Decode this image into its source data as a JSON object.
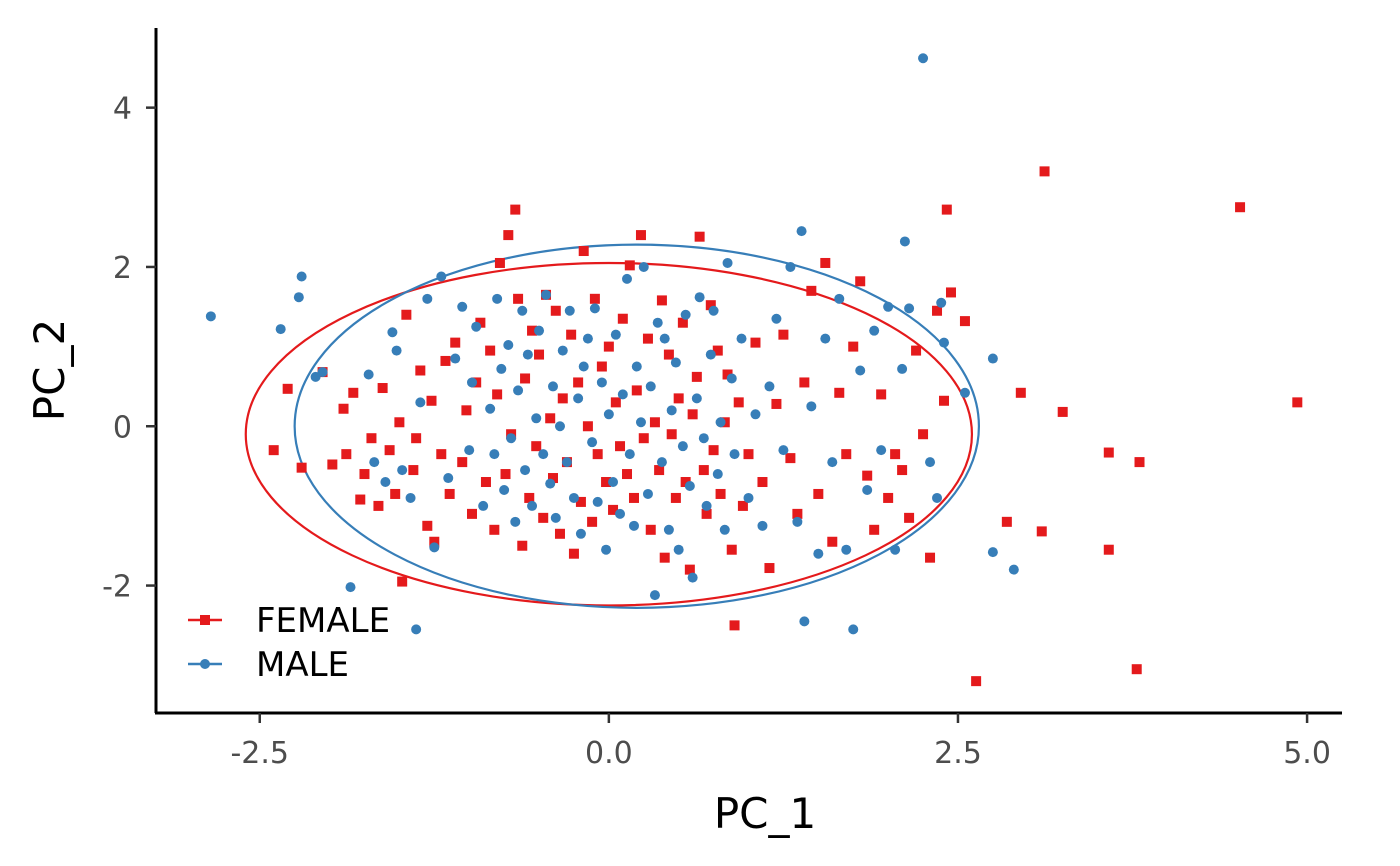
{
  "chart_data": {
    "type": "scatter",
    "title": "",
    "xlabel": "PC_1",
    "ylabel": "PC_2",
    "xlim": [
      -3.25,
      5.25
    ],
    "ylim": [
      -3.6,
      5.0
    ],
    "xticks": [
      -2.5,
      0.0,
      2.5,
      5.0
    ],
    "xtick_labels": [
      "-2.5",
      "0.0",
      "2.5",
      "5.0"
    ],
    "yticks": [
      -2,
      0,
      2,
      4
    ],
    "ytick_labels": [
      "-2",
      "0",
      "2",
      "4"
    ],
    "grid": false,
    "legend_position": "bottom-left",
    "series": [
      {
        "name": "FEMALE",
        "color": "#e41a1c",
        "marker": "square",
        "ellipse": {
          "cx": 0.0,
          "cy": -0.1,
          "rx": 2.6,
          "ry": 2.15
        },
        "points": [
          [
            -2.4,
            -0.3
          ],
          [
            -2.3,
            0.47
          ],
          [
            -2.2,
            -0.52
          ],
          [
            -2.05,
            0.68
          ],
          [
            -1.98,
            -0.48
          ],
          [
            -1.9,
            0.22
          ],
          [
            -1.88,
            -0.35
          ],
          [
            -1.83,
            0.42
          ],
          [
            -1.78,
            -0.92
          ],
          [
            -1.75,
            -0.6
          ],
          [
            -1.7,
            -0.15
          ],
          [
            -1.65,
            -1.0
          ],
          [
            -1.62,
            0.48
          ],
          [
            -1.57,
            -0.3
          ],
          [
            -1.53,
            -0.85
          ],
          [
            -1.5,
            0.05
          ],
          [
            -1.48,
            -1.95
          ],
          [
            -1.45,
            1.4
          ],
          [
            -1.4,
            -0.55
          ],
          [
            -1.38,
            -0.15
          ],
          [
            -1.35,
            0.7
          ],
          [
            -1.3,
            -1.25
          ],
          [
            -1.27,
            0.32
          ],
          [
            -1.25,
            -1.45
          ],
          [
            -1.2,
            -0.35
          ],
          [
            -1.17,
            0.82
          ],
          [
            -1.14,
            -0.85
          ],
          [
            -1.1,
            1.05
          ],
          [
            -1.05,
            -0.45
          ],
          [
            -1.02,
            0.2
          ],
          [
            -0.98,
            -1.1
          ],
          [
            -0.95,
            0.55
          ],
          [
            -0.92,
            1.3
          ],
          [
            -0.88,
            -0.7
          ],
          [
            -0.85,
            0.95
          ],
          [
            -0.82,
            -1.3
          ],
          [
            -0.8,
            0.4
          ],
          [
            -0.78,
            2.05
          ],
          [
            -0.74,
            -0.6
          ],
          [
            -0.72,
            2.4
          ],
          [
            -0.7,
            -0.1
          ],
          [
            -0.67,
            2.72
          ],
          [
            -0.65,
            1.6
          ],
          [
            -0.62,
            -1.5
          ],
          [
            -0.6,
            0.6
          ],
          [
            -0.57,
            -0.9
          ],
          [
            -0.55,
            1.2
          ],
          [
            -0.52,
            -0.25
          ],
          [
            -0.5,
            0.9
          ],
          [
            -0.47,
            -1.15
          ],
          [
            -0.45,
            1.65
          ],
          [
            -0.42,
            0.1
          ],
          [
            -0.4,
            -0.65
          ],
          [
            -0.38,
            1.45
          ],
          [
            -0.35,
            -1.35
          ],
          [
            -0.33,
            0.35
          ],
          [
            -0.3,
            -0.45
          ],
          [
            -0.27,
            1.15
          ],
          [
            -0.25,
            -1.6
          ],
          [
            -0.22,
            0.55
          ],
          [
            -0.2,
            -0.95
          ],
          [
            -0.18,
            2.2
          ],
          [
            -0.15,
            0.0
          ],
          [
            -0.12,
            -1.2
          ],
          [
            -0.1,
            1.6
          ],
          [
            -0.08,
            -0.35
          ],
          [
            -0.05,
            0.75
          ],
          [
            -0.02,
            -0.7
          ],
          [
            0.0,
            1.0
          ],
          [
            0.03,
            -1.05
          ],
          [
            0.05,
            0.3
          ],
          [
            0.08,
            -0.25
          ],
          [
            0.1,
            1.35
          ],
          [
            0.13,
            -0.6
          ],
          [
            0.15,
            2.02
          ],
          [
            0.18,
            -0.9
          ],
          [
            0.2,
            0.45
          ],
          [
            0.23,
            2.4
          ],
          [
            0.25,
            -0.15
          ],
          [
            0.28,
            1.1
          ],
          [
            0.3,
            -1.3
          ],
          [
            0.33,
            0.05
          ],
          [
            0.36,
            -0.55
          ],
          [
            0.38,
            1.58
          ],
          [
            0.4,
            -1.65
          ],
          [
            0.43,
            0.9
          ],
          [
            0.45,
            -0.1
          ],
          [
            0.48,
            -0.9
          ],
          [
            0.5,
            0.35
          ],
          [
            0.53,
            1.3
          ],
          [
            0.55,
            -0.7
          ],
          [
            0.58,
            -1.8
          ],
          [
            0.6,
            0.15
          ],
          [
            0.63,
            0.62
          ],
          [
            0.65,
            2.38
          ],
          [
            0.68,
            -0.55
          ],
          [
            0.7,
            -1.1
          ],
          [
            0.73,
            1.52
          ],
          [
            0.75,
            -0.3
          ],
          [
            0.78,
            0.95
          ],
          [
            0.8,
            -0.85
          ],
          [
            0.83,
            0.05
          ],
          [
            0.85,
            0.65
          ],
          [
            0.88,
            -1.55
          ],
          [
            0.9,
            -2.5
          ],
          [
            0.93,
            0.3
          ],
          [
            0.96,
            -1.0
          ],
          [
            1.0,
            -0.35
          ],
          [
            1.05,
            1.05
          ],
          [
            1.1,
            -0.7
          ],
          [
            1.15,
            -1.78
          ],
          [
            1.2,
            0.28
          ],
          [
            1.25,
            1.15
          ],
          [
            1.3,
            -0.4
          ],
          [
            1.35,
            -1.1
          ],
          [
            1.4,
            0.55
          ],
          [
            1.45,
            1.7
          ],
          [
            1.5,
            -0.85
          ],
          [
            1.55,
            2.05
          ],
          [
            1.6,
            -1.45
          ],
          [
            1.65,
            0.42
          ],
          [
            1.7,
            -0.35
          ],
          [
            1.75,
            1.0
          ],
          [
            1.8,
            1.82
          ],
          [
            1.85,
            -0.62
          ],
          [
            1.9,
            -1.3
          ],
          [
            1.95,
            0.4
          ],
          [
            2.0,
            -0.9
          ],
          [
            2.05,
            -0.35
          ],
          [
            2.1,
            -0.55
          ],
          [
            2.15,
            -1.15
          ],
          [
            2.2,
            0.95
          ],
          [
            2.25,
            -0.1
          ],
          [
            2.3,
            -1.65
          ],
          [
            2.35,
            1.45
          ],
          [
            2.4,
            0.32
          ],
          [
            2.42,
            2.72
          ],
          [
            2.45,
            1.68
          ],
          [
            2.55,
            1.32
          ],
          [
            2.63,
            -3.2
          ],
          [
            2.85,
            -1.2
          ],
          [
            2.95,
            0.42
          ],
          [
            3.1,
            -1.32
          ],
          [
            3.12,
            3.2
          ],
          [
            3.25,
            0.18
          ],
          [
            3.58,
            -0.33
          ],
          [
            3.58,
            -1.55
          ],
          [
            3.78,
            -3.05
          ],
          [
            3.8,
            -0.45
          ],
          [
            4.52,
            2.75
          ],
          [
            4.93,
            0.3
          ]
        ]
      },
      {
        "name": "MALE",
        "color": "#377eb8",
        "marker": "circle",
        "ellipse": {
          "cx": 0.2,
          "cy": 0.0,
          "rx": 2.45,
          "ry": 2.28
        },
        "points": [
          [
            -2.85,
            1.38
          ],
          [
            -2.2,
            1.88
          ],
          [
            -2.22,
            1.62
          ],
          [
            -2.35,
            1.22
          ],
          [
            -2.05,
            0.68
          ],
          [
            -2.1,
            0.62
          ],
          [
            -1.85,
            -2.02
          ],
          [
            -1.72,
            0.65
          ],
          [
            -1.68,
            -0.45
          ],
          [
            -1.6,
            -0.7
          ],
          [
            -1.55,
            1.18
          ],
          [
            -1.52,
            0.95
          ],
          [
            -1.48,
            -0.55
          ],
          [
            -1.42,
            -0.9
          ],
          [
            -1.38,
            -2.55
          ],
          [
            -1.35,
            0.3
          ],
          [
            -1.3,
            1.6
          ],
          [
            -1.25,
            -1.52
          ],
          [
            -1.2,
            1.88
          ],
          [
            -1.15,
            -0.65
          ],
          [
            -1.1,
            0.85
          ],
          [
            -1.05,
            1.5
          ],
          [
            -1.0,
            -0.3
          ],
          [
            -0.98,
            0.55
          ],
          [
            -0.95,
            1.25
          ],
          [
            -0.9,
            -1.0
          ],
          [
            -0.85,
            0.22
          ],
          [
            -0.82,
            -0.35
          ],
          [
            -0.8,
            1.6
          ],
          [
            -0.77,
            0.72
          ],
          [
            -0.75,
            -0.8
          ],
          [
            -0.72,
            1.02
          ],
          [
            -0.7,
            -0.15
          ],
          [
            -0.67,
            -1.2
          ],
          [
            -0.65,
            0.45
          ],
          [
            -0.62,
            1.45
          ],
          [
            -0.6,
            -0.55
          ],
          [
            -0.58,
            0.9
          ],
          [
            -0.55,
            -1.0
          ],
          [
            -0.52,
            0.1
          ],
          [
            -0.5,
            1.2
          ],
          [
            -0.47,
            -0.35
          ],
          [
            -0.45,
            1.65
          ],
          [
            -0.42,
            -0.72
          ],
          [
            -0.4,
            0.5
          ],
          [
            -0.38,
            -1.15
          ],
          [
            -0.35,
            0.0
          ],
          [
            -0.33,
            0.95
          ],
          [
            -0.3,
            -0.45
          ],
          [
            -0.28,
            1.45
          ],
          [
            -0.25,
            -0.9
          ],
          [
            -0.22,
            0.35
          ],
          [
            -0.2,
            -1.35
          ],
          [
            -0.18,
            0.75
          ],
          [
            -0.15,
            1.1
          ],
          [
            -0.12,
            -0.2
          ],
          [
            -0.1,
            1.48
          ],
          [
            -0.08,
            -0.95
          ],
          [
            -0.05,
            0.55
          ],
          [
            -0.02,
            -1.55
          ],
          [
            0.0,
            0.15
          ],
          [
            0.03,
            -0.7
          ],
          [
            0.05,
            1.15
          ],
          [
            0.08,
            -1.1
          ],
          [
            0.1,
            0.4
          ],
          [
            0.13,
            1.85
          ],
          [
            0.15,
            -0.35
          ],
          [
            0.18,
            -1.25
          ],
          [
            0.2,
            0.75
          ],
          [
            0.23,
            0.05
          ],
          [
            0.25,
            2.0
          ],
          [
            0.28,
            -0.85
          ],
          [
            0.3,
            0.5
          ],
          [
            0.33,
            -2.12
          ],
          [
            0.35,
            1.3
          ],
          [
            0.38,
            -0.45
          ],
          [
            0.4,
            1.1
          ],
          [
            0.43,
            -1.3
          ],
          [
            0.45,
            0.2
          ],
          [
            0.48,
            0.8
          ],
          [
            0.5,
            -1.55
          ],
          [
            0.53,
            -0.25
          ],
          [
            0.55,
            1.4
          ],
          [
            0.58,
            -0.75
          ],
          [
            0.6,
            -1.9
          ],
          [
            0.63,
            0.35
          ],
          [
            0.65,
            1.62
          ],
          [
            0.68,
            -0.15
          ],
          [
            0.7,
            -1.0
          ],
          [
            0.73,
            0.9
          ],
          [
            0.75,
            1.45
          ],
          [
            0.78,
            -0.6
          ],
          [
            0.8,
            0.05
          ],
          [
            0.83,
            -1.3
          ],
          [
            0.85,
            2.05
          ],
          [
            0.88,
            0.6
          ],
          [
            0.9,
            -0.35
          ],
          [
            0.95,
            1.1
          ],
          [
            1.0,
            -0.9
          ],
          [
            1.05,
            0.15
          ],
          [
            1.1,
            -1.25
          ],
          [
            1.15,
            0.5
          ],
          [
            1.2,
            1.35
          ],
          [
            1.25,
            -0.3
          ],
          [
            1.3,
            2.0
          ],
          [
            1.35,
            -1.2
          ],
          [
            1.38,
            2.45
          ],
          [
            1.4,
            -2.45
          ],
          [
            1.45,
            0.25
          ],
          [
            1.5,
            -1.6
          ],
          [
            1.55,
            1.1
          ],
          [
            1.6,
            -0.45
          ],
          [
            1.65,
            1.6
          ],
          [
            1.7,
            -1.55
          ],
          [
            1.75,
            -2.55
          ],
          [
            1.8,
            0.7
          ],
          [
            1.85,
            -0.8
          ],
          [
            1.9,
            1.2
          ],
          [
            1.95,
            -0.3
          ],
          [
            2.0,
            1.5
          ],
          [
            2.05,
            -1.55
          ],
          [
            2.1,
            0.72
          ],
          [
            2.12,
            2.32
          ],
          [
            2.15,
            1.48
          ],
          [
            2.25,
            4.62
          ],
          [
            2.3,
            -0.45
          ],
          [
            2.35,
            -0.9
          ],
          [
            2.38,
            1.55
          ],
          [
            2.4,
            1.05
          ],
          [
            2.55,
            0.42
          ],
          [
            2.75,
            0.85
          ],
          [
            2.75,
            -1.58
          ],
          [
            2.9,
            -1.8
          ]
        ]
      }
    ]
  }
}
